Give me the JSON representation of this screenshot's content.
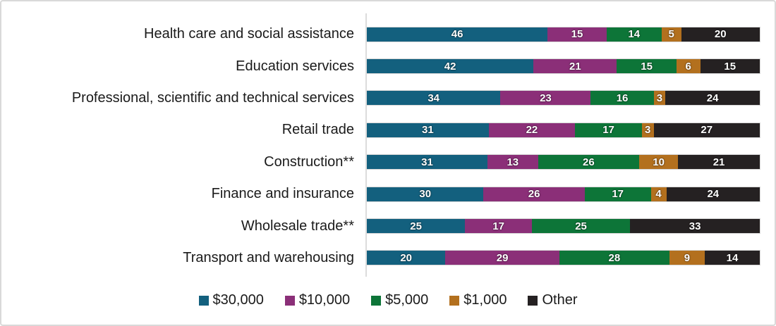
{
  "frame": {
    "background": "#ffffff",
    "border_color": "#d9d9d9",
    "axis_line_color": "#dcdcdc"
  },
  "chart_data": {
    "type": "bar",
    "orientation": "horizontal",
    "stacked": true,
    "title": "",
    "xlabel": "",
    "ylabel": "",
    "xlim": [
      0,
      100
    ],
    "grid": false,
    "legend_position": "bottom",
    "value_label_style": "white bold inside segments",
    "categories": [
      "Health care and social assistance",
      "Education services",
      "Professional, scientific and technical services",
      "Retail trade",
      "Construction**",
      "Finance and insurance",
      "Wholesale trade**",
      "Transport and warehousing"
    ],
    "series": [
      {
        "name": "$30,000",
        "color": "#13607e",
        "values": [
          46,
          42,
          34,
          31,
          31,
          30,
          25,
          20
        ]
      },
      {
        "name": "$10,000",
        "color": "#8b2f78",
        "values": [
          15,
          21,
          23,
          22,
          13,
          26,
          17,
          29
        ]
      },
      {
        "name": "$5,000",
        "color": "#0d7538",
        "values": [
          14,
          15,
          16,
          17,
          26,
          17,
          25,
          28
        ]
      },
      {
        "name": "$1,000",
        "color": "#b3701e",
        "values": [
          5,
          6,
          3,
          3,
          10,
          4,
          0,
          9
        ]
      },
      {
        "name": "Other",
        "color": "#252122",
        "values": [
          20,
          15,
          24,
          27,
          21,
          24,
          33,
          14
        ]
      }
    ]
  }
}
